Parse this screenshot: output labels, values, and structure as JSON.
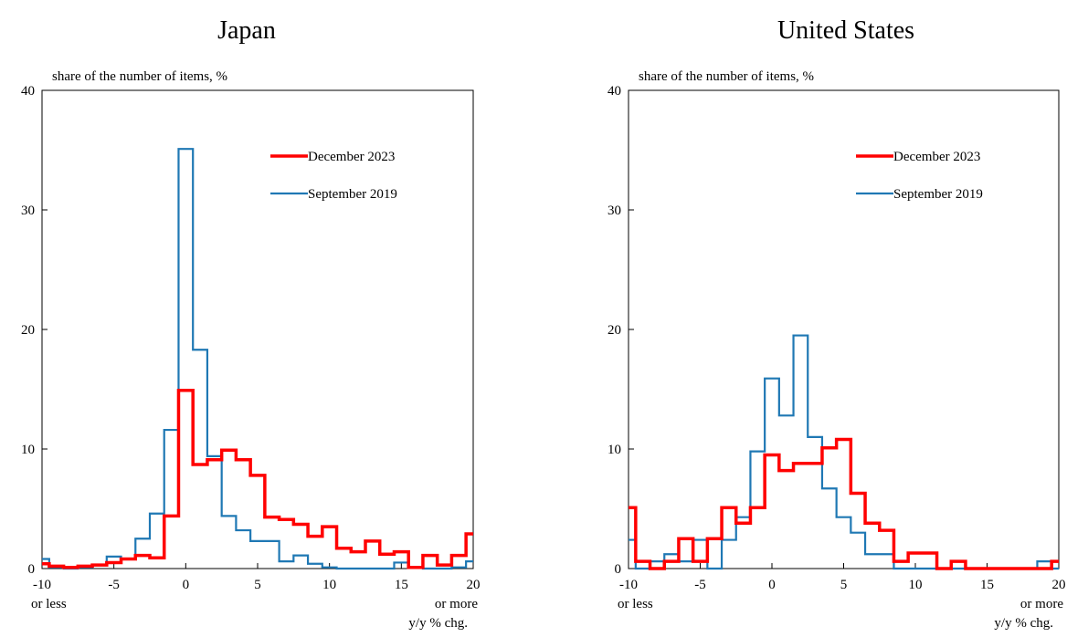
{
  "chart_data": [
    {
      "type": "line",
      "title": "Japan",
      "ylabel": "share of the number of items, %",
      "xlabel": "y/y % chg.",
      "xlim": [
        -10,
        20
      ],
      "ylim": [
        0,
        40
      ],
      "x_ticks": [
        "-10",
        "-5",
        "0",
        "5",
        "10",
        "15",
        "20"
      ],
      "y_ticks": [
        "0",
        "10",
        "20",
        "30",
        "40"
      ],
      "x_ticks_sub": {
        "left": "or less",
        "right": "or more"
      },
      "legend": {
        "position": "top-right"
      },
      "series": [
        {
          "name": "December 2023",
          "color": "#ff0000",
          "x": [
            -10,
            -9,
            -8,
            -7,
            -6,
            -5,
            -4,
            -3,
            -2,
            -1,
            0,
            1,
            2,
            3,
            4,
            5,
            6,
            7,
            8,
            9,
            10,
            11,
            12,
            13,
            14,
            15,
            16,
            17,
            18,
            19,
            20
          ],
          "values": [
            0.4,
            0.2,
            0.1,
            0.2,
            0.3,
            0.5,
            0.8,
            1.1,
            0.9,
            4.4,
            14.9,
            8.7,
            9.1,
            9.9,
            9.1,
            7.8,
            4.3,
            4.1,
            3.7,
            2.7,
            3.5,
            1.7,
            1.4,
            2.3,
            1.2,
            1.4,
            0.1,
            1.1,
            0.3,
            1.1,
            2.9
          ]
        },
        {
          "name": "September 2019",
          "color": "#1f78b4",
          "x": [
            -10,
            -9,
            -8,
            -7,
            -6,
            -5,
            -4,
            -3,
            -2,
            -1,
            0,
            1,
            2,
            3,
            4,
            5,
            6,
            7,
            8,
            9,
            10,
            11,
            12,
            13,
            14,
            15,
            16,
            17,
            18,
            19,
            20
          ],
          "values": [
            0.8,
            0.1,
            0.0,
            0.1,
            0.3,
            1.0,
            0.8,
            2.5,
            4.6,
            11.6,
            35.1,
            18.3,
            9.4,
            4.4,
            3.2,
            2.3,
            2.3,
            0.6,
            1.1,
            0.4,
            0.1,
            0.0,
            0.0,
            0.0,
            0.0,
            0.5,
            0.1,
            0.0,
            0.0,
            0.1,
            0.6
          ]
        }
      ]
    },
    {
      "type": "line",
      "title": "United States",
      "ylabel": "share of the number of items, %",
      "xlabel": "y/y % chg.",
      "xlim": [
        -10,
        20
      ],
      "ylim": [
        0,
        40
      ],
      "x_ticks": [
        "-10",
        "-5",
        "0",
        "5",
        "10",
        "15",
        "20"
      ],
      "y_ticks": [
        "0",
        "10",
        "20",
        "30",
        "40"
      ],
      "x_ticks_sub": {
        "left": "or less",
        "right": "or more"
      },
      "legend": {
        "position": "top-right"
      },
      "series": [
        {
          "name": "December 2023",
          "color": "#ff0000",
          "x": [
            -10,
            -9,
            -8,
            -7,
            -6,
            -5,
            -4,
            -3,
            -2,
            -1,
            0,
            1,
            2,
            3,
            4,
            5,
            6,
            7,
            8,
            9,
            10,
            11,
            12,
            13,
            14,
            15,
            16,
            17,
            18,
            19,
            20
          ],
          "values": [
            5.1,
            0.6,
            0.0,
            0.6,
            2.5,
            0.6,
            2.5,
            5.1,
            3.8,
            5.1,
            9.5,
            8.2,
            8.8,
            8.8,
            10.1,
            10.8,
            6.3,
            3.8,
            3.2,
            0.6,
            1.3,
            1.3,
            0.0,
            0.6,
            0.0,
            0.0,
            0.0,
            0.0,
            0.0,
            0.0,
            0.6
          ]
        },
        {
          "name": "September 2019",
          "color": "#1f78b4",
          "x": [
            -10,
            -9,
            -8,
            -7,
            -6,
            -5,
            -4,
            -3,
            -2,
            -1,
            0,
            1,
            2,
            3,
            4,
            5,
            6,
            7,
            8,
            9,
            10,
            11,
            12,
            13,
            14,
            15,
            16,
            17,
            18,
            19,
            20
          ],
          "values": [
            2.4,
            0.0,
            0.6,
            1.2,
            0.6,
            2.4,
            0.0,
            2.4,
            4.3,
            9.8,
            15.9,
            12.8,
            19.5,
            11.0,
            6.7,
            4.3,
            3.0,
            1.2,
            1.2,
            0.0,
            0.0,
            0.0,
            0.0,
            0.0,
            0.0,
            0.0,
            0.0,
            0.0,
            0.0,
            0.6,
            0.0
          ]
        }
      ]
    }
  ]
}
